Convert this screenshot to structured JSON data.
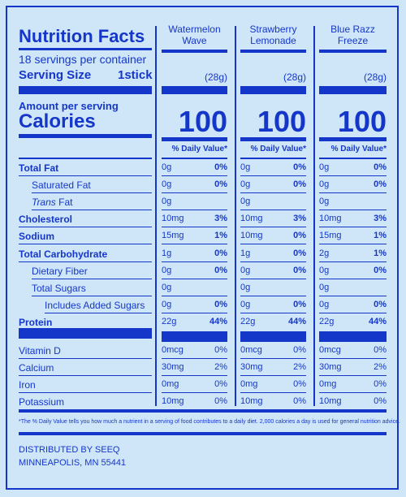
{
  "title": "Nutrition Facts",
  "servings": "18 servings per container",
  "serving_size_label": "Serving Size",
  "serving_size_value": "1stick",
  "amount_per_serving": "Amount per serving",
  "calories_label": "Calories",
  "dv_header": "% Daily Value*",
  "flavors": [
    {
      "name_line1": "Watermelon",
      "name_line2": "Wave",
      "serving_grams": "(28g)",
      "calories": "100"
    },
    {
      "name_line1": "Strawberry",
      "name_line2": "Lemonade",
      "serving_grams": "(28g)",
      "calories": "100"
    },
    {
      "name_line1": "Blue Razz",
      "name_line2": "Freeze",
      "serving_grams": "(28g)",
      "calories": "100"
    }
  ],
  "nutrients": [
    {
      "label": "Total Fat",
      "values": [
        {
          "amt": "0g",
          "dv": "0%"
        },
        {
          "amt": "0g",
          "dv": "0%"
        },
        {
          "amt": "0g",
          "dv": "0%"
        }
      ]
    },
    {
      "label": "Saturated Fat",
      "values": [
        {
          "amt": "0g",
          "dv": "0%"
        },
        {
          "amt": "0g",
          "dv": "0%"
        },
        {
          "amt": "0g",
          "dv": "0%"
        }
      ]
    },
    {
      "label_prefix": "Trans",
      "label_suffix": " Fat",
      "values": [
        {
          "amt": "0g",
          "dv": ""
        },
        {
          "amt": "0g",
          "dv": ""
        },
        {
          "amt": "0g",
          "dv": ""
        }
      ]
    },
    {
      "label": "Cholesterol",
      "values": [
        {
          "amt": "10mg",
          "dv": "3%"
        },
        {
          "amt": "10mg",
          "dv": "3%"
        },
        {
          "amt": "10mg",
          "dv": "3%"
        }
      ]
    },
    {
      "label": "Sodium",
      "values": [
        {
          "amt": "15mg",
          "dv": "1%"
        },
        {
          "amt": "10mg",
          "dv": "0%"
        },
        {
          "amt": "15mg",
          "dv": "1%"
        }
      ]
    },
    {
      "label": "Total Carbohydrate",
      "values": [
        {
          "amt": "1g",
          "dv": "0%"
        },
        {
          "amt": "1g",
          "dv": "0%"
        },
        {
          "amt": "2g",
          "dv": "1%"
        }
      ]
    },
    {
      "label": "Dietary Fiber",
      "values": [
        {
          "amt": "0g",
          "dv": "0%"
        },
        {
          "amt": "0g",
          "dv": "0%"
        },
        {
          "amt": "0g",
          "dv": "0%"
        }
      ]
    },
    {
      "label": "Total Sugars",
      "values": [
        {
          "amt": "0g",
          "dv": ""
        },
        {
          "amt": "0g",
          "dv": ""
        },
        {
          "amt": "0g",
          "dv": ""
        }
      ]
    },
    {
      "label": "Includes Added Sugars",
      "values": [
        {
          "amt": "0g",
          "dv": "0%"
        },
        {
          "amt": "0g",
          "dv": "0%"
        },
        {
          "amt": "0g",
          "dv": "0%"
        }
      ]
    },
    {
      "label": "Protein",
      "values": [
        {
          "amt": "22g",
          "dv": "44%"
        },
        {
          "amt": "22g",
          "dv": "44%"
        },
        {
          "amt": "22g",
          "dv": "44%"
        }
      ]
    }
  ],
  "vitamins": [
    {
      "label": "Vitamin D",
      "values": [
        {
          "amt": "0mcg",
          "dv": "0%"
        },
        {
          "amt": "0mcg",
          "dv": "0%"
        },
        {
          "amt": "0mcg",
          "dv": "0%"
        }
      ]
    },
    {
      "label": "Calcium",
      "values": [
        {
          "amt": "30mg",
          "dv": "2%"
        },
        {
          "amt": "30mg",
          "dv": "2%"
        },
        {
          "amt": "30mg",
          "dv": "2%"
        }
      ]
    },
    {
      "label": "Iron",
      "values": [
        {
          "amt": "0mg",
          "dv": "0%"
        },
        {
          "amt": "0mg",
          "dv": "0%"
        },
        {
          "amt": "0mg",
          "dv": "0%"
        }
      ]
    },
    {
      "label": "Potassium",
      "values": [
        {
          "amt": "10mg",
          "dv": "0%"
        },
        {
          "amt": "10mg",
          "dv": "0%"
        },
        {
          "amt": "10mg",
          "dv": "0%"
        }
      ]
    }
  ],
  "footnote": "*The % Daily Value tells you how much a nutrient in a serving of food contributes to a daily diet. 2,000 calories a day is used for general nutrition advice.",
  "distributor_line1": "DISTRIBUTED BY SEEQ",
  "distributor_line2": "MINNEAPOLIS, MN 55441",
  "colors": {
    "ink": "#1537c9",
    "background": "#cfe6f8"
  }
}
